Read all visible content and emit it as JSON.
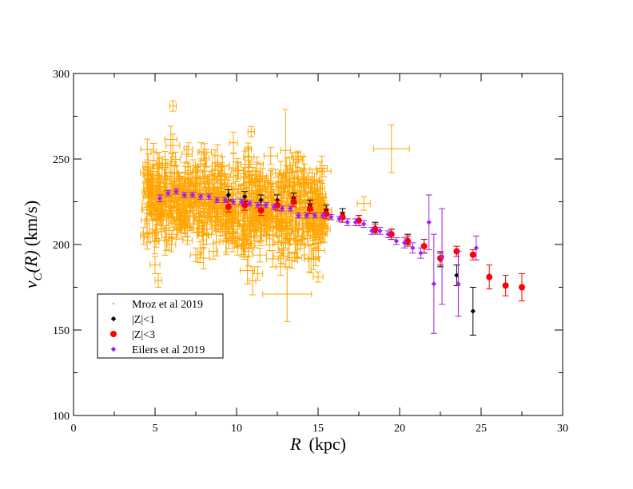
{
  "chart_data": {
    "type": "scatter",
    "title": "",
    "xlabel": {
      "symbol": "R",
      "unit": "(kpc)"
    },
    "ylabel": {
      "main": "v",
      "sub": "C",
      "arg": "(R)",
      "unit": "(km/s)"
    },
    "xlim": [
      0,
      30
    ],
    "ylim": [
      100,
      300
    ],
    "x_ticks": [
      0,
      5,
      10,
      15,
      20,
      25,
      30
    ],
    "y_ticks": [
      100,
      150,
      200,
      250,
      300
    ],
    "legend_position": "bottom-left",
    "colors": {
      "mroz": "#ffa500",
      "z1": "#000000",
      "z3": "#ff0000",
      "eilers": "#a020f0"
    },
    "legend": [
      {
        "label": "Mroz et al 2019",
        "series": "mroz"
      },
      {
        "label": "|Z|<1",
        "series": "z1"
      },
      {
        "label": "|Z|<3",
        "series": "z3"
      },
      {
        "label": "Eilers et al 2019",
        "series": "eilers"
      }
    ],
    "series": {
      "mroz": {
        "name": "Mroz et al 2019",
        "generated_cloud": {
          "n": 620,
          "x_range": [
            4.5,
            15.5
          ],
          "center_start": 228,
          "center_end": 218,
          "spread": 13
        },
        "outliers": [
          {
            "x": 6.1,
            "y": 281,
            "ex": 0.2,
            "ey": 3
          },
          {
            "x": 19.5,
            "y": 256,
            "ex": 1.1,
            "ey": 14
          },
          {
            "x": 13.1,
            "y": 171,
            "ex": 1.5,
            "ey": 16
          },
          {
            "x": 13.0,
            "y": 255,
            "ex": 0.3,
            "ey": 24
          },
          {
            "x": 15.0,
            "y": 181,
            "ex": 0.3,
            "ey": 3
          },
          {
            "x": 5.0,
            "y": 188,
            "ex": 0.3,
            "ey": 5
          },
          {
            "x": 5.2,
            "y": 179,
            "ex": 0.2,
            "ey": 4
          },
          {
            "x": 10.9,
            "y": 266,
            "ex": 0.2,
            "ey": 3
          },
          {
            "x": 11.3,
            "y": 183,
            "ex": 0.3,
            "ey": 4
          },
          {
            "x": 12.7,
            "y": 187,
            "ex": 0.3,
            "ey": 5
          },
          {
            "x": 17.8,
            "y": 224,
            "ex": 0.4,
            "ey": 4
          },
          {
            "x": 4.3,
            "y": 205,
            "ex": 0.2,
            "ey": 5
          },
          {
            "x": 4.4,
            "y": 242,
            "ex": 0.3,
            "ey": 6
          }
        ]
      },
      "z1": {
        "name": "|Z|<1",
        "points": [
          {
            "x": 9.5,
            "y": 229,
            "err": 3
          },
          {
            "x": 10.5,
            "y": 228,
            "err": 3
          },
          {
            "x": 11.5,
            "y": 226,
            "err": 3
          },
          {
            "x": 12.5,
            "y": 226,
            "err": 3
          },
          {
            "x": 13.5,
            "y": 227,
            "err": 3
          },
          {
            "x": 14.5,
            "y": 223,
            "err": 3
          },
          {
            "x": 15.5,
            "y": 220,
            "err": 3
          },
          {
            "x": 16.5,
            "y": 218,
            "err": 3
          },
          {
            "x": 17.5,
            "y": 214,
            "err": 3
          },
          {
            "x": 18.5,
            "y": 210,
            "err": 3
          },
          {
            "x": 19.5,
            "y": 206,
            "err": 3
          },
          {
            "x": 20.5,
            "y": 203,
            "err": 3
          },
          {
            "x": 21.5,
            "y": 199,
            "err": 4
          },
          {
            "x": 22.5,
            "y": 191,
            "err": 4
          },
          {
            "x": 23.5,
            "y": 182,
            "err": 6
          },
          {
            "x": 24.5,
            "y": 161,
            "err": 14
          }
        ]
      },
      "z3": {
        "name": "|Z|<3",
        "points": [
          {
            "x": 9.5,
            "y": 222,
            "err": 3
          },
          {
            "x": 10.5,
            "y": 223,
            "err": 3
          },
          {
            "x": 11.5,
            "y": 220,
            "err": 3
          },
          {
            "x": 12.5,
            "y": 223,
            "err": 3
          },
          {
            "x": 13.5,
            "y": 225,
            "err": 3
          },
          {
            "x": 14.5,
            "y": 221,
            "err": 3
          },
          {
            "x": 15.5,
            "y": 218,
            "err": 3
          },
          {
            "x": 16.5,
            "y": 216,
            "err": 3
          },
          {
            "x": 17.5,
            "y": 214,
            "err": 3
          },
          {
            "x": 18.5,
            "y": 209,
            "err": 3
          },
          {
            "x": 19.5,
            "y": 206,
            "err": 3
          },
          {
            "x": 20.5,
            "y": 202,
            "err": 3
          },
          {
            "x": 21.5,
            "y": 199,
            "err": 4
          },
          {
            "x": 22.5,
            "y": 192,
            "err": 4
          },
          {
            "x": 23.5,
            "y": 196,
            "err": 3
          },
          {
            "x": 24.5,
            "y": 194,
            "err": 3
          },
          {
            "x": 25.5,
            "y": 181,
            "err": 7
          },
          {
            "x": 26.5,
            "y": 176,
            "err": 6
          },
          {
            "x": 27.5,
            "y": 175,
            "err": 8
          }
        ]
      },
      "eilers": {
        "name": "Eilers et al 2019",
        "points": [
          {
            "x": 5.3,
            "y": 227,
            "err": 2
          },
          {
            "x": 5.8,
            "y": 230,
            "err": 1.5
          },
          {
            "x": 6.3,
            "y": 231,
            "err": 1.5
          },
          {
            "x": 6.8,
            "y": 229,
            "err": 1.5
          },
          {
            "x": 7.3,
            "y": 229,
            "err": 1.5
          },
          {
            "x": 7.8,
            "y": 228,
            "err": 1.5
          },
          {
            "x": 8.3,
            "y": 228,
            "err": 1.5
          },
          {
            "x": 8.8,
            "y": 226,
            "err": 1.5
          },
          {
            "x": 9.3,
            "y": 226,
            "err": 1.5
          },
          {
            "x": 9.8,
            "y": 225,
            "err": 1.5
          },
          {
            "x": 10.3,
            "y": 225,
            "err": 1.5
          },
          {
            "x": 10.8,
            "y": 224,
            "err": 1.5
          },
          {
            "x": 11.3,
            "y": 223,
            "err": 1.5
          },
          {
            "x": 11.8,
            "y": 223,
            "err": 1.5
          },
          {
            "x": 12.3,
            "y": 222,
            "err": 1.5
          },
          {
            "x": 12.8,
            "y": 221,
            "err": 1.5
          },
          {
            "x": 13.3,
            "y": 221,
            "err": 1.5
          },
          {
            "x": 13.8,
            "y": 217,
            "err": 1.5
          },
          {
            "x": 14.3,
            "y": 217,
            "err": 1.5
          },
          {
            "x": 14.8,
            "y": 217,
            "err": 1.5
          },
          {
            "x": 15.3,
            "y": 217,
            "err": 1.5
          },
          {
            "x": 15.8,
            "y": 216,
            "err": 1.5
          },
          {
            "x": 16.3,
            "y": 215,
            "err": 1.5
          },
          {
            "x": 16.8,
            "y": 213,
            "err": 2
          },
          {
            "x": 17.3,
            "y": 213,
            "err": 2
          },
          {
            "x": 17.8,
            "y": 212,
            "err": 2
          },
          {
            "x": 18.3,
            "y": 208,
            "err": 2
          },
          {
            "x": 18.8,
            "y": 208,
            "err": 2
          },
          {
            "x": 19.3,
            "y": 206,
            "err": 2
          },
          {
            "x": 19.8,
            "y": 202,
            "err": 2
          },
          {
            "x": 20.3,
            "y": 201,
            "err": 3
          },
          {
            "x": 20.8,
            "y": 198,
            "err": 3
          },
          {
            "x": 21.3,
            "y": 195,
            "err": 3
          },
          {
            "x": 21.8,
            "y": 213,
            "err": 16
          },
          {
            "x": 22.1,
            "y": 177,
            "err": 29
          },
          {
            "x": 22.6,
            "y": 193,
            "err": 28
          },
          {
            "x": 23.6,
            "y": 177,
            "err": 19
          },
          {
            "x": 24.7,
            "y": 198,
            "err": 7
          }
        ]
      }
    }
  }
}
